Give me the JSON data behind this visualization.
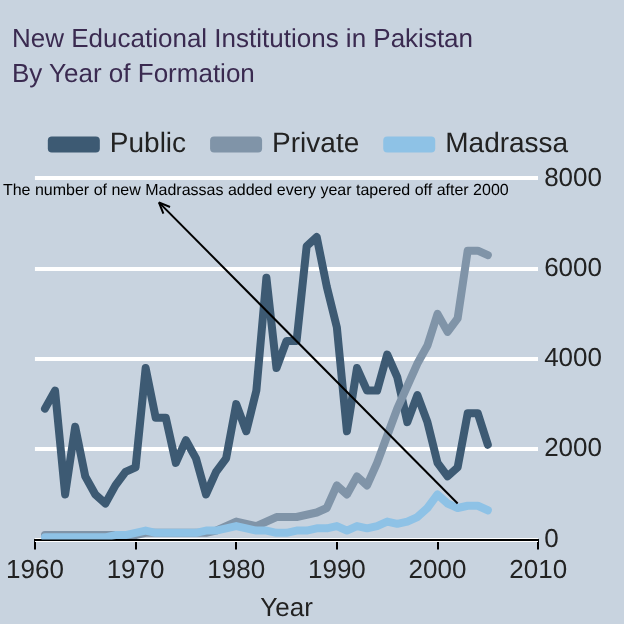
{
  "chart_data": {
    "type": "line",
    "title": "New Educational Institutions in Pakistan",
    "subtitle": "By Year of Formation",
    "xlabel": "Year",
    "x": [
      1961,
      1962,
      1963,
      1964,
      1965,
      1966,
      1967,
      1968,
      1969,
      1970,
      1971,
      1972,
      1973,
      1974,
      1975,
      1976,
      1977,
      1978,
      1979,
      1980,
      1981,
      1982,
      1983,
      1984,
      1985,
      1986,
      1987,
      1988,
      1989,
      1990,
      1991,
      1992,
      1993,
      1994,
      1995,
      1996,
      1997,
      1998,
      1999,
      2000,
      2001,
      2002,
      2003,
      2004,
      2005
    ],
    "series": [
      {
        "name": "Public",
        "color": "#3d5a73",
        "values": [
          2900,
          3300,
          1000,
          2500,
          1400,
          1000,
          800,
          1200,
          1500,
          1600,
          3800,
          2700,
          2700,
          1700,
          2200,
          1800,
          1000,
          1500,
          1800,
          3000,
          2400,
          3300,
          5800,
          3800,
          4400,
          4400,
          6500,
          6700,
          5600,
          4700,
          2400,
          3800,
          3300,
          3300,
          4100,
          3600,
          2600,
          3200,
          2600,
          1700,
          1400,
          1600,
          2800,
          2800,
          2100
        ]
      },
      {
        "name": "Private",
        "color": "#8094a8",
        "values": [
          100,
          100,
          100,
          100,
          100,
          100,
          100,
          100,
          100,
          100,
          150,
          150,
          150,
          150,
          150,
          150,
          150,
          200,
          300,
          400,
          350,
          300,
          400,
          500,
          500,
          500,
          550,
          600,
          700,
          1200,
          1000,
          1400,
          1200,
          1700,
          2300,
          2900,
          3400,
          3900,
          4300,
          5000,
          4600,
          4900,
          6400,
          6400,
          6300
        ]
      },
      {
        "name": "Madrassa",
        "color": "#8ec2e6",
        "values": [
          50,
          50,
          50,
          50,
          50,
          50,
          50,
          100,
          100,
          150,
          200,
          150,
          150,
          150,
          150,
          150,
          200,
          200,
          250,
          300,
          250,
          200,
          200,
          150,
          150,
          200,
          200,
          250,
          250,
          300,
          200,
          300,
          250,
          300,
          400,
          350,
          400,
          500,
          700,
          1000,
          800,
          700,
          750,
          750,
          650
        ]
      }
    ],
    "xlim": [
      1960,
      2010
    ],
    "xticks": [
      1960,
      1970,
      1980,
      1990,
      2000,
      2010
    ],
    "ylim": [
      0,
      8000
    ],
    "yticks": [
      0,
      2000,
      4000,
      6000,
      8000
    ],
    "grid": "y",
    "legend": "top",
    "annotations": [
      {
        "text": "The number of new Madrassas added every year tapered off after 2000",
        "x": 2002,
        "y": 800
      }
    ]
  }
}
